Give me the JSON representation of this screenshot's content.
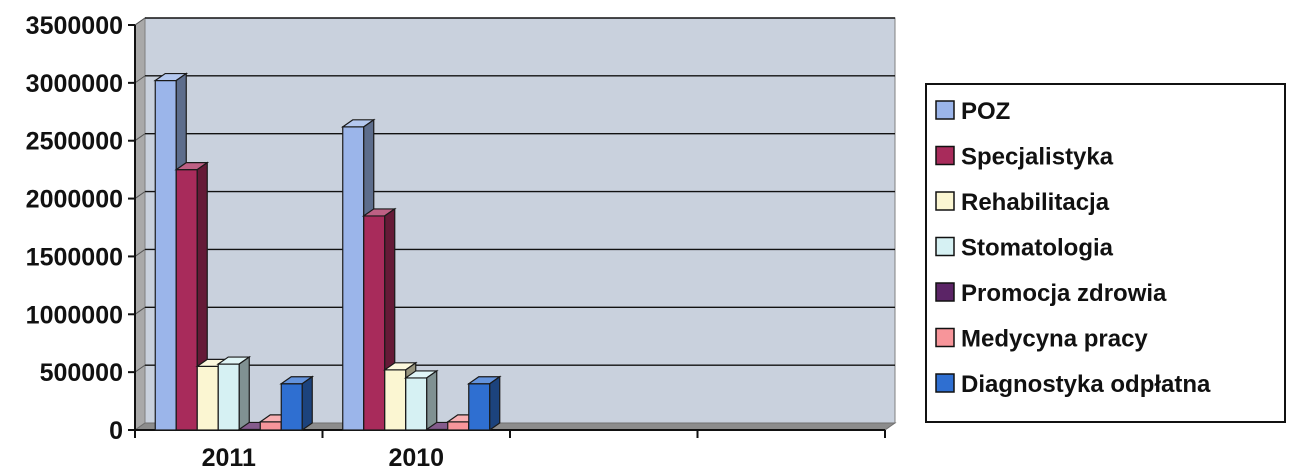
{
  "chart_data": {
    "type": "bar",
    "variant": "3d-clustered-column",
    "categories": [
      "2011",
      "2010"
    ],
    "empty_category_slots": 2,
    "ylim": [
      0,
      3500000
    ],
    "yticks": [
      "3500000",
      "3000000",
      "2500000",
      "2000000",
      "1500000",
      "1000000",
      "500000",
      "0"
    ],
    "grid": true,
    "legend_position": "right",
    "plot_background": "#c9d1dd",
    "series": [
      {
        "name": "POZ",
        "color": "#9bb5ea",
        "values": [
          3020000,
          2620000
        ]
      },
      {
        "name": "Specjalistyka",
        "color": "#a82b5b",
        "values": [
          2250000,
          1850000
        ]
      },
      {
        "name": "Rehabilitacja",
        "color": "#fbf6d2",
        "values": [
          550000,
          520000
        ]
      },
      {
        "name": "Stomatologia",
        "color": "#d6f1f3",
        "values": [
          570000,
          450000
        ]
      },
      {
        "name": "Promocja zdrowia",
        "color": "#5b2466",
        "values": [
          5000,
          5000
        ]
      },
      {
        "name": "Medycyna pracy",
        "color": "#f7959a",
        "values": [
          70000,
          70000
        ]
      },
      {
        "name": "Diagnostyka odpłatna",
        "color": "#2f6fd1",
        "values": [
          400000,
          400000
        ]
      }
    ]
  }
}
